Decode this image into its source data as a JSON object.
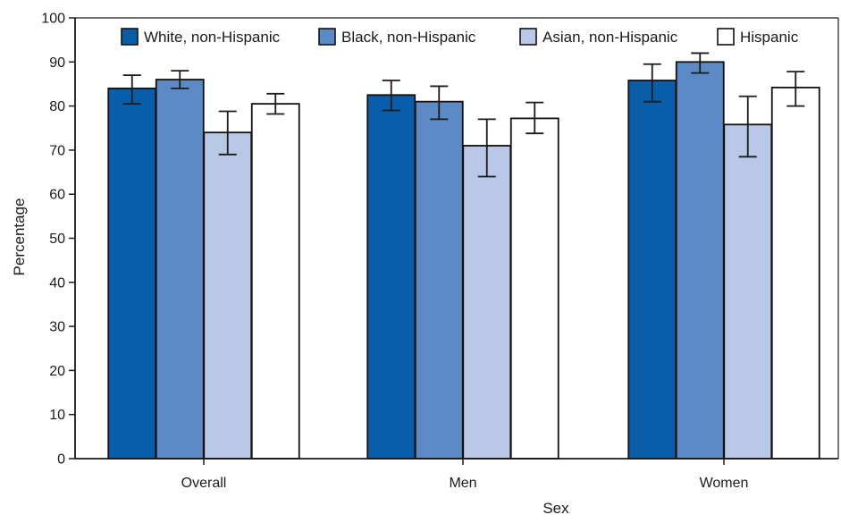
{
  "chart_data": {
    "type": "bar",
    "title": "",
    "xlabel": "Sex",
    "ylabel": "Percentage",
    "ylim": [
      0,
      100
    ],
    "yticks": [
      0,
      10,
      20,
      30,
      40,
      50,
      60,
      70,
      80,
      90,
      100
    ],
    "categories": [
      "Overall",
      "Men",
      "Women"
    ],
    "legend_position": "top",
    "series": [
      {
        "name": "White, non-Hispanic",
        "color": "#0a5da8",
        "values": [
          84,
          82.5,
          85.8
        ],
        "ci_low": [
          80.5,
          79,
          81
        ],
        "ci_high": [
          87,
          85.8,
          89.5
        ]
      },
      {
        "name": "Black, non-Hispanic",
        "color": "#5b8ac6",
        "values": [
          86,
          81,
          90
        ],
        "ci_low": [
          84,
          77,
          87.5
        ],
        "ci_high": [
          88,
          84.5,
          92
        ]
      },
      {
        "name": "Asian, non-Hispanic",
        "color": "#b8c8e6",
        "values": [
          74,
          71,
          75.8
        ],
        "ci_low": [
          69,
          64,
          68.5
        ],
        "ci_high": [
          78.8,
          77,
          82.2
        ]
      },
      {
        "name": "Hispanic",
        "color": "#ffffff",
        "values": [
          80.5,
          77.2,
          84.2
        ],
        "ci_low": [
          78.2,
          73.8,
          80
        ],
        "ci_high": [
          82.8,
          80.8,
          87.8
        ]
      }
    ]
  }
}
